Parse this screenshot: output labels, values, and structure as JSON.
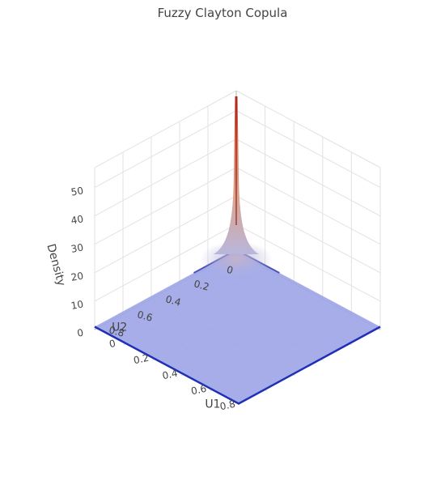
{
  "chart_data": {
    "type": "surface",
    "title": "Fuzzy Clayton Copula",
    "xlabel": "U1",
    "ylabel": "U2",
    "zlabel": "Density",
    "x_ticks": [
      "0",
      "0.2",
      "0.4",
      "0.6",
      "0.8"
    ],
    "y_ticks": [
      "0",
      "0.2",
      "0.4",
      "0.6",
      "0.8"
    ],
    "z_ticks": [
      "0",
      "10",
      "20",
      "30",
      "40",
      "50"
    ],
    "xlim": [
      0,
      1
    ],
    "ylim": [
      0,
      1
    ],
    "zlim": [
      0,
      57
    ],
    "surface": {
      "description_points": [
        {
          "u1": 0.0,
          "u2": 0.0,
          "density": 55
        },
        {
          "u1": 0.02,
          "u2": 0.02,
          "density": 20
        },
        {
          "u1": 0.05,
          "u2": 0.05,
          "density": 4
        },
        {
          "u1": 0.5,
          "u2": 0.5,
          "density": 1
        },
        {
          "u1": 1.0,
          "u2": 1.0,
          "density": 1
        }
      ],
      "colorscale": {
        "low": "#9fa6e6",
        "mid": "#e0a08c",
        "high": "#c0392b",
        "edge": "#1f2fb8"
      }
    },
    "grid": true
  }
}
